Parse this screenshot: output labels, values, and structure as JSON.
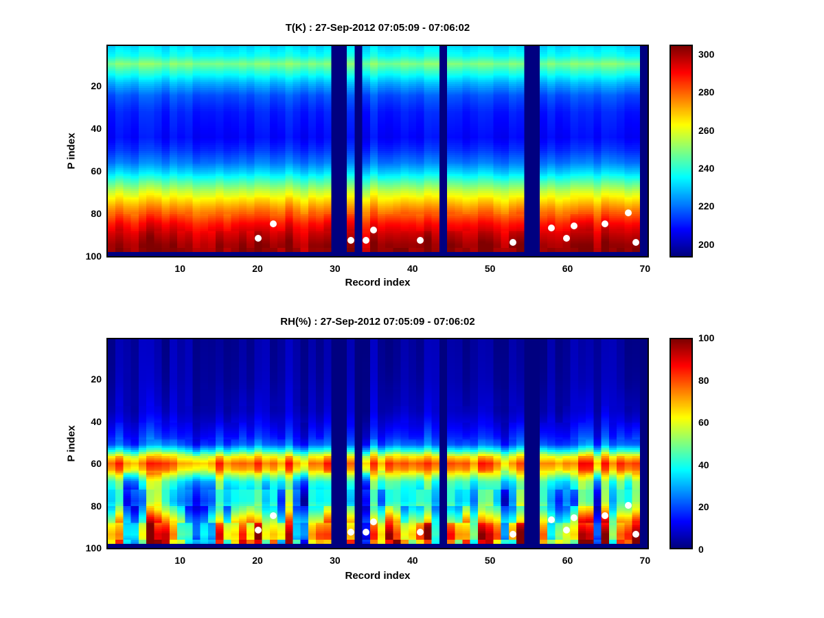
{
  "page": {
    "background": "#ffffff",
    "missing_data_color": "#00007f",
    "marker_color": "#ffffff"
  },
  "chart_data": [
    {
      "type": "heatmap",
      "title": "T(K) : 27-Sep-2012 07:05:09 - 07:06:02",
      "xlabel": "Record index",
      "ylabel": "P index",
      "x_range": [
        1,
        70
      ],
      "y_range": [
        1,
        100
      ],
      "x_ticks": [
        10,
        20,
        30,
        40,
        50,
        60,
        70
      ],
      "y_ticks": [
        20,
        40,
        60,
        80,
        100
      ],
      "y_axis_direction": "reversed",
      "colormap": "jet",
      "color_range": [
        193,
        305
      ],
      "colorbar_ticks": [
        200,
        220,
        240,
        260,
        280,
        300
      ],
      "profile_p_value": [
        [
          1,
          231
        ],
        [
          5,
          236
        ],
        [
          9,
          249
        ],
        [
          13,
          239
        ],
        [
          18,
          227
        ],
        [
          24,
          216
        ],
        [
          32,
          210
        ],
        [
          44,
          207
        ],
        [
          50,
          212
        ],
        [
          56,
          220
        ],
        [
          61,
          231
        ],
        [
          65,
          243
        ],
        [
          69,
          254
        ],
        [
          73,
          264
        ],
        [
          77,
          273
        ],
        [
          81,
          281
        ],
        [
          85,
          289
        ],
        [
          90,
          296
        ],
        [
          95,
          301
        ],
        [
          98,
          302
        ]
      ],
      "jitter_col": 3,
      "jitter_bottom_col": 4,
      "jitter_patch": 2.5,
      "missing_records": [
        30,
        31,
        33,
        44,
        55,
        56,
        70
      ],
      "missing_bottom_rows": 2,
      "white_dots": [
        [
          20,
          92
        ],
        [
          22,
          85
        ],
        [
          32,
          93
        ],
        [
          34,
          93
        ],
        [
          35,
          88
        ],
        [
          41,
          93
        ],
        [
          53,
          94
        ],
        [
          58,
          87
        ],
        [
          60,
          92
        ],
        [
          61,
          86
        ],
        [
          65,
          85
        ],
        [
          68,
          80
        ],
        [
          69,
          94
        ]
      ]
    },
    {
      "type": "heatmap",
      "title": "RH(%) : 27-Sep-2012 07:05:09 - 07:06:02",
      "xlabel": "Record index",
      "ylabel": "P index",
      "x_range": [
        1,
        70
      ],
      "y_range": [
        1,
        100
      ],
      "x_ticks": [
        10,
        20,
        30,
        40,
        50,
        60,
        70
      ],
      "y_ticks": [
        20,
        40,
        60,
        80,
        100
      ],
      "y_axis_direction": "reversed",
      "colormap": "jet",
      "color_range": [
        0,
        100
      ],
      "colorbar_ticks": [
        0,
        20,
        40,
        60,
        80,
        100
      ],
      "profile_p_value": [
        [
          1,
          3
        ],
        [
          20,
          4
        ],
        [
          35,
          6
        ],
        [
          42,
          10
        ],
        [
          47,
          14
        ],
        [
          51,
          20
        ],
        [
          54,
          38
        ],
        [
          57,
          62
        ],
        [
          60,
          75
        ],
        [
          63,
          68
        ],
        [
          66,
          50
        ],
        [
          69,
          36
        ],
        [
          73,
          30
        ],
        [
          78,
          27
        ],
        [
          82,
          33
        ],
        [
          86,
          45
        ],
        [
          90,
          55
        ],
        [
          94,
          60
        ],
        [
          98,
          55
        ]
      ],
      "jitter_col": 4,
      "jitter_bottom_col": 45,
      "jitter_patch": 18,
      "missing_records": [
        30,
        31,
        33,
        44,
        55,
        56,
        70
      ],
      "missing_bottom_rows": 2,
      "white_dots": [
        [
          20,
          92
        ],
        [
          22,
          85
        ],
        [
          32,
          93
        ],
        [
          34,
          93
        ],
        [
          35,
          88
        ],
        [
          41,
          93
        ],
        [
          53,
          94
        ],
        [
          58,
          87
        ],
        [
          60,
          92
        ],
        [
          61,
          86
        ],
        [
          65,
          85
        ],
        [
          68,
          80
        ],
        [
          69,
          94
        ]
      ]
    }
  ]
}
